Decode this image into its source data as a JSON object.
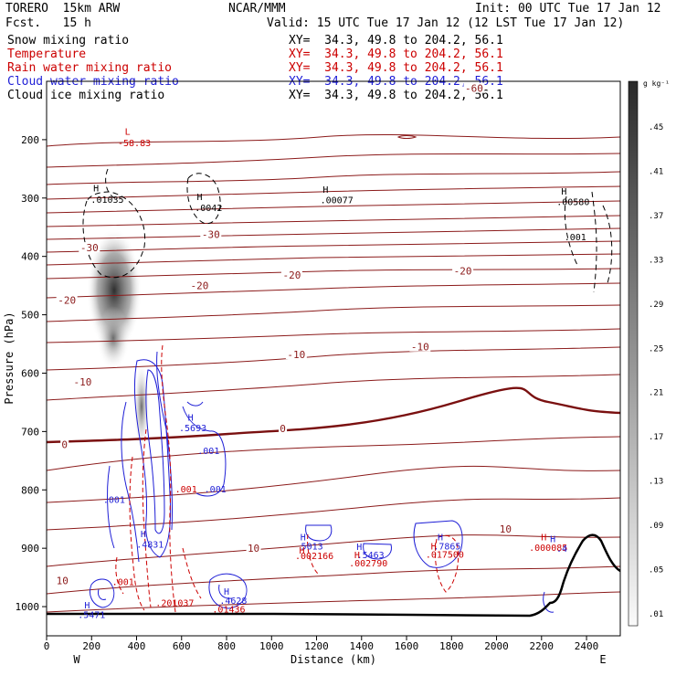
{
  "header": {
    "model_name": "TORERO  15km ARW",
    "forecast": "Fcst.   15 h",
    "center": "NCAR/MMM",
    "init": "Init: 00 UTC Tue 17 Jan 12",
    "valid": "Valid: 15 UTC Tue 17 Jan 12 (12 LST Tue 17 Jan 12)"
  },
  "fields": [
    {
      "name": "Snow mixing ratio",
      "color": "#000000",
      "xy": ""
    },
    {
      "name": "Temperature",
      "color": "#cc0000",
      "xy": "XY=  34.3, 49.8 to 204.2, 56.1"
    },
    {
      "name": "Rain water mixing ratio",
      "color": "#cc0000",
      "xy": "XY=  34.3, 49.8 to 204.2, 56.1"
    },
    {
      "name": "Cloud water mixing ratio",
      "color": "#1f1fd6",
      "xy": "XY=  34.3, 49.8 to 204.2, 56.1"
    },
    {
      "name": "Cloud ice mixing ratio",
      "color": "#000000",
      "xy": "XY=  34.3, 49.8 to 204.2, 56.1"
    }
  ],
  "first_xy": "XY=  34.3, 49.8 to 204.2, 56.1",
  "colorbar": {
    "unit": "g kg⁻¹",
    "labels": [
      ".45",
      ".41",
      ".37",
      ".33",
      ".29",
      ".25",
      ".21",
      ".17",
      ".13",
      ".09",
      ".05",
      ".01"
    ]
  },
  "chart_data": {
    "type": "cross-section",
    "xlabel": "Distance (km)",
    "ylabel": "Pressure (hPa)",
    "xlim": [
      0,
      2550
    ],
    "ylim": [
      1050,
      100
    ],
    "x_ticks": [
      0,
      200,
      400,
      600,
      800,
      1000,
      1200,
      1400,
      1600,
      1800,
      2000,
      2200,
      2400
    ],
    "y_ticks": [
      200,
      300,
      400,
      500,
      600,
      700,
      800,
      900,
      1000
    ],
    "endpoints": {
      "left": "W",
      "right": "E"
    },
    "isotherms": [
      {
        "label": "-60",
        "x": 1900,
        "p": 112
      },
      {
        "label": "-30",
        "x": 190,
        "p": 385
      },
      {
        "label": "-30",
        "x": 730,
        "p": 362
      },
      {
        "label": "-20",
        "x": 90,
        "p": 475
      },
      {
        "label": "-20",
        "x": 680,
        "p": 450
      },
      {
        "label": "-20",
        "x": 1090,
        "p": 432
      },
      {
        "label": "-20",
        "x": 1850,
        "p": 425
      },
      {
        "label": "-10",
        "x": 160,
        "p": 615
      },
      {
        "label": "-10",
        "x": 1110,
        "p": 568
      },
      {
        "label": "-10",
        "x": 1660,
        "p": 555
      },
      {
        "label": "0",
        "x": 80,
        "p": 722
      },
      {
        "label": "0",
        "x": 1050,
        "p": 695
      },
      {
        "label": "10",
        "x": 70,
        "p": 955
      },
      {
        "label": "10",
        "x": 920,
        "p": 900
      },
      {
        "label": "10",
        "x": 2040,
        "p": 867
      }
    ],
    "annotations": [
      {
        "text": "L",
        "x": 360,
        "p": 185,
        "color": "#cc0000"
      },
      {
        "text": "-58.83",
        "x": 390,
        "p": 205,
        "color": "#cc0000"
      },
      {
        "text": "H",
        "x": 220,
        "p": 282,
        "color": "#000000"
      },
      {
        "text": ".01035",
        "x": 270,
        "p": 302,
        "color": "#000000"
      },
      {
        "text": "H",
        "x": 680,
        "p": 297,
        "color": "#000000"
      },
      {
        "text": ".0042",
        "x": 720,
        "p": 316,
        "color": "#000000"
      },
      {
        "text": "H",
        "x": 1240,
        "p": 285,
        "color": "#000000"
      },
      {
        "text": ".00077",
        "x": 1290,
        "p": 303,
        "color": "#000000"
      },
      {
        "text": "H",
        "x": 2300,
        "p": 288,
        "color": "#000000"
      },
      {
        "text": ".00580",
        "x": 2340,
        "p": 306,
        "color": "#000000"
      },
      {
        "text": ".001",
        "x": 2350,
        "p": 366,
        "color": "#000000"
      },
      {
        "text": "H",
        "x": 640,
        "p": 675,
        "color": "#1f1fd6"
      },
      {
        "text": ".5693",
        "x": 650,
        "p": 693,
        "color": "#1f1fd6"
      },
      {
        "text": ".001",
        "x": 720,
        "p": 732,
        "color": "#1f1fd6"
      },
      {
        "text": ".001",
        "x": 620,
        "p": 798,
        "color": "#cc0000"
      },
      {
        "text": ".001",
        "x": 750,
        "p": 798,
        "color": "#1f1fd6"
      },
      {
        "text": ".001",
        "x": 300,
        "p": 816,
        "color": "#1f1fd6"
      },
      {
        "text": "H",
        "x": 430,
        "p": 875,
        "color": "#1f1fd6"
      },
      {
        "text": ".4831",
        "x": 460,
        "p": 893,
        "color": "#1f1fd6"
      },
      {
        "text": ".001",
        "x": 340,
        "p": 957,
        "color": "#cc0000"
      },
      {
        "text": ".201037",
        "x": 570,
        "p": 993,
        "color": "#cc0000"
      },
      {
        "text": "H",
        "x": 800,
        "p": 973,
        "color": "#1f1fd6"
      },
      {
        "text": ".4628",
        "x": 830,
        "p": 989,
        "color": "#1f1fd6"
      },
      {
        "text": ".01436",
        "x": 810,
        "p": 1004,
        "color": "#cc0000"
      },
      {
        "text": "H",
        "x": 180,
        "p": 997,
        "color": "#1f1fd6"
      },
      {
        "text": ".5471",
        "x": 200,
        "p": 1013,
        "color": "#1f1fd6"
      },
      {
        "text": "H",
        "x": 1140,
        "p": 880,
        "color": "#1f1fd6"
      },
      {
        "text": "5013",
        "x": 1180,
        "p": 896,
        "color": "#1f1fd6"
      },
      {
        "text": "H",
        "x": 1135,
        "p": 903,
        "color": "#cc0000"
      },
      {
        "text": ".002166",
        "x": 1190,
        "p": 912,
        "color": "#cc0000"
      },
      {
        "text": "H",
        "x": 1390,
        "p": 897,
        "color": "#1f1fd6"
      },
      {
        "text": ".5463",
        "x": 1440,
        "p": 911,
        "color": "#1f1fd6"
      },
      {
        "text": "H",
        "x": 1380,
        "p": 911,
        "color": "#cc0000"
      },
      {
        "text": ".002790",
        "x": 1430,
        "p": 925,
        "color": "#cc0000"
      },
      {
        "text": "H",
        "x": 1750,
        "p": 880,
        "color": "#1f1fd6"
      },
      {
        "text": ".7865",
        "x": 1780,
        "p": 896,
        "color": "#1f1fd6"
      },
      {
        "text": "H",
        "x": 1720,
        "p": 896,
        "color": "#cc0000"
      },
      {
        "text": ".017500",
        "x": 1770,
        "p": 910,
        "color": "#cc0000"
      },
      {
        "text": "H",
        "x": 2210,
        "p": 880,
        "color": "#cc0000"
      },
      {
        "text": "H",
        "x": 2250,
        "p": 883,
        "color": "#1f1fd6"
      },
      {
        "text": ".000085",
        "x": 2230,
        "p": 898,
        "color": "#cc0000"
      },
      {
        "text": ".4",
        "x": 2290,
        "p": 900,
        "color": "#1f1fd6"
      }
    ]
  }
}
